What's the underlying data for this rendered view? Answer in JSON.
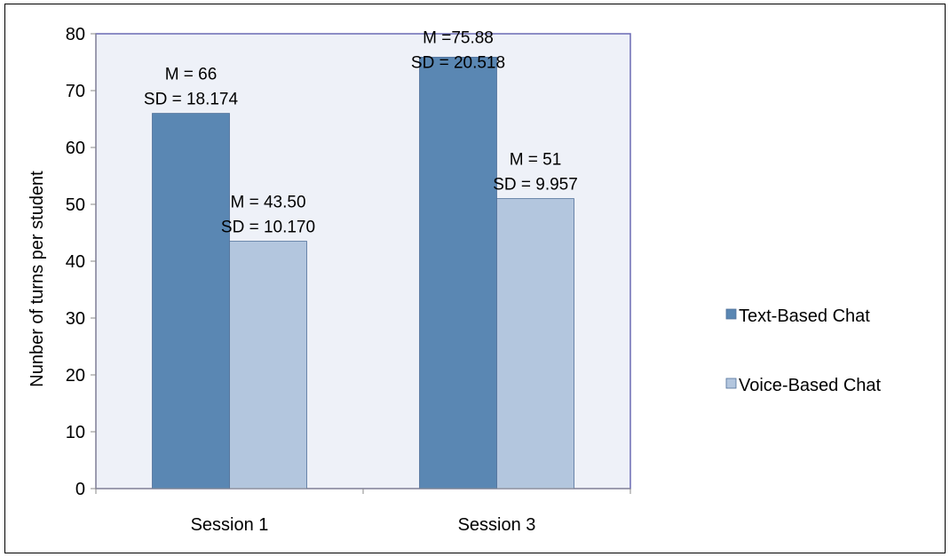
{
  "chart_data": {
    "type": "bar",
    "categories": [
      "Session 1",
      "Session 3"
    ],
    "series": [
      {
        "name": "Text-Based Chat",
        "values": [
          66,
          75.88
        ],
        "color": "#5a87b3",
        "labels": [
          [
            "M = 66",
            "SD = 18.174"
          ],
          [
            "M =75.88",
            "SD = 20.518"
          ]
        ]
      },
      {
        "name": "Voice-Based Chat",
        "values": [
          43.5,
          51
        ],
        "color": "#b3c6de",
        "labels": [
          [
            "M = 43.50",
            "SD = 10.170"
          ],
          [
            "M = 51",
            "SD = 9.957"
          ]
        ]
      }
    ],
    "ylabel": "Nunber of turns per student",
    "xlabel": "",
    "ylim": [
      0,
      80
    ],
    "yticks": [
      "0",
      "10",
      "20",
      "30",
      "40",
      "50",
      "60",
      "70",
      "80"
    ],
    "grid": false,
    "legend": "right",
    "plot_background": "#eef1f8",
    "plot_border": "#6a6ab4"
  }
}
